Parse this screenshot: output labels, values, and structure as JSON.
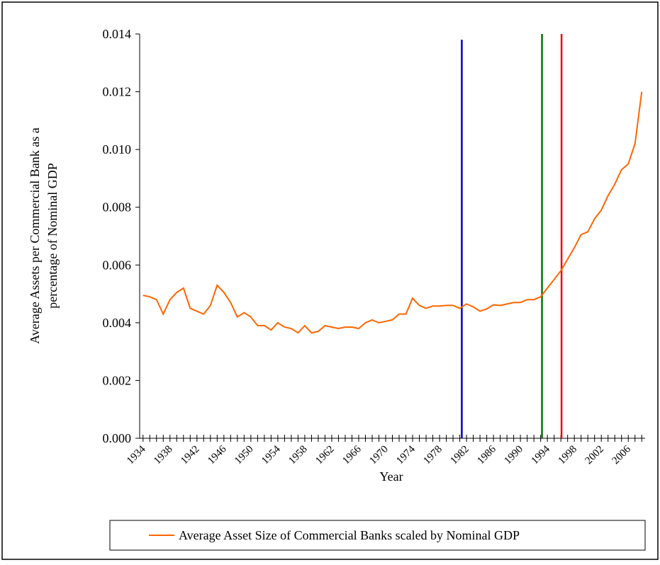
{
  "chart_data": {
    "type": "line",
    "ylabel": [
      "Average Assets per Commercial Bank as a",
      "percentage of Nominal GDP"
    ],
    "xlabel": "Year",
    "x": [
      1934,
      1935,
      1936,
      1937,
      1938,
      1939,
      1940,
      1941,
      1942,
      1943,
      1944,
      1945,
      1946,
      1947,
      1948,
      1949,
      1950,
      1951,
      1952,
      1953,
      1954,
      1955,
      1956,
      1957,
      1958,
      1959,
      1960,
      1961,
      1962,
      1963,
      1964,
      1965,
      1966,
      1967,
      1968,
      1969,
      1970,
      1971,
      1972,
      1973,
      1974,
      1975,
      1976,
      1977,
      1978,
      1979,
      1980,
      1981,
      1982,
      1983,
      1984,
      1985,
      1986,
      1987,
      1988,
      1989,
      1990,
      1991,
      1992,
      1993,
      1994,
      1995,
      1996,
      1997,
      1998,
      1999,
      2000,
      2001,
      2002,
      2003,
      2004,
      2005,
      2006,
      2007,
      2008
    ],
    "series": [
      {
        "name": "Average Asset Size of Commercial Banks scaled by Nominal GDP",
        "color": "#ff6600",
        "values": [
          0.00495,
          0.0049,
          0.0048,
          0.0043,
          0.0048,
          0.00505,
          0.0052,
          0.0045,
          0.0044,
          0.0043,
          0.0046,
          0.0053,
          0.00505,
          0.0047,
          0.0042,
          0.00435,
          0.0042,
          0.0039,
          0.0039,
          0.00375,
          0.004,
          0.00385,
          0.0038,
          0.00365,
          0.0039,
          0.00365,
          0.0037,
          0.0039,
          0.00385,
          0.0038,
          0.00385,
          0.00385,
          0.0038,
          0.004,
          0.0041,
          0.004,
          0.00405,
          0.0041,
          0.0043,
          0.0043,
          0.00485,
          0.0046,
          0.0045,
          0.00458,
          0.00458,
          0.0046,
          0.0046,
          0.0045,
          0.00465,
          0.00455,
          0.0044,
          0.00448,
          0.00462,
          0.0046,
          0.00465,
          0.0047,
          0.0047,
          0.0048,
          0.0048,
          0.0049,
          0.0052,
          0.0055,
          0.0058,
          0.0062,
          0.0066,
          0.00705,
          0.00715,
          0.0076,
          0.0079,
          0.0084,
          0.0088,
          0.0093,
          0.0095,
          0.0102,
          0.012
        ]
      }
    ],
    "xlim": [
      1933.5,
      2008.5
    ],
    "xticks": [
      1934,
      1938,
      1942,
      1946,
      1950,
      1954,
      1958,
      1962,
      1966,
      1970,
      1974,
      1978,
      1982,
      1986,
      1990,
      1994,
      1998,
      2002,
      2006
    ],
    "ylim": [
      0,
      0.014
    ],
    "yticks": [
      {
        "value": 0,
        "label": "0.000"
      },
      {
        "value": 0.002,
        "label": "0.002"
      },
      {
        "value": 0.004,
        "label": "0.004"
      },
      {
        "value": 0.006,
        "label": "0.006"
      },
      {
        "value": 0.008,
        "label": "0.008"
      },
      {
        "value": 0.01,
        "label": "0.010"
      },
      {
        "value": 0.012,
        "label": "0.012"
      },
      {
        "value": 0.014,
        "label": "0.014"
      }
    ],
    "vlines": [
      {
        "x": 1981.3,
        "top": 0.0138,
        "color": "#0000cc"
      },
      {
        "x": 1993.2,
        "top": 0.014,
        "color": "#007700"
      },
      {
        "x": 1996.1,
        "top": 0.014,
        "color": "#ee0000"
      }
    ],
    "legend": "bottom"
  }
}
